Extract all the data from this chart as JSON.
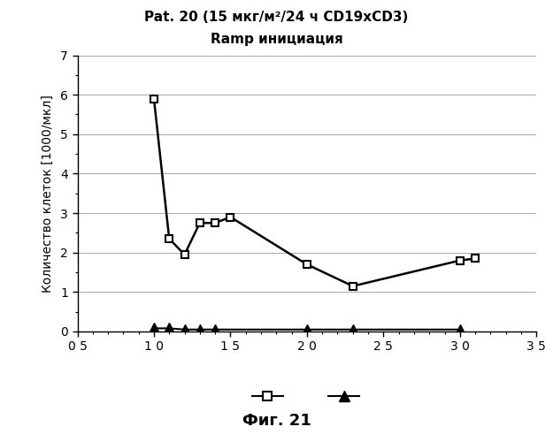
{
  "title_line1": "Pat. 20 (15 мкг/м²/24 ч CD19xCD3)",
  "title_line2": "Ramp инициация",
  "ylabel": "Количество клеток [1000/мкл]",
  "xlim": [
    5,
    35
  ],
  "ylim": [
    0,
    7
  ],
  "xticks": [
    5,
    10,
    15,
    20,
    25,
    30,
    35
  ],
  "yticks": [
    0,
    1,
    2,
    3,
    4,
    5,
    6,
    7
  ],
  "ytick_labels": [
    "0",
    "1",
    "2",
    "3",
    "4",
    "5",
    "6",
    "7"
  ],
  "xtick_labels": [
    "0 5",
    "1 0",
    "1 5",
    "2 0",
    "2 5",
    "3 0",
    "3 5"
  ],
  "series1_x": [
    10,
    11,
    12,
    13,
    14,
    15,
    20,
    23,
    30,
    31
  ],
  "series1_y": [
    5.9,
    2.35,
    1.95,
    2.75,
    2.75,
    2.9,
    1.7,
    1.15,
    1.8,
    1.85
  ],
  "series2_x": [
    10,
    11,
    12,
    13,
    14,
    20,
    23,
    30
  ],
  "series2_y": [
    0.08,
    0.08,
    0.05,
    0.05,
    0.05,
    0.05,
    0.05,
    0.05
  ],
  "caption": "Фиг. 21",
  "background_color": "#ffffff",
  "grid_color": "#999999",
  "line_color": "#000000"
}
